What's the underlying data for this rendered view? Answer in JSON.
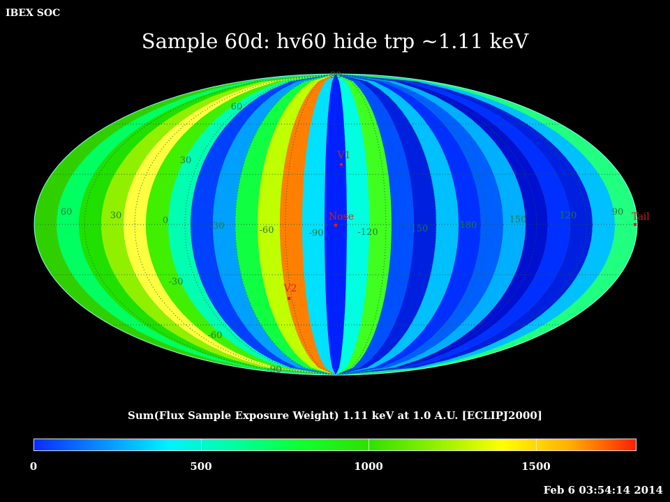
{
  "header": {
    "corner_label": "IBEX SOC",
    "title": "Sample 60d: hv60 hide trp ~1.11 keV"
  },
  "map": {
    "projection": "Mollweide",
    "frame": "ECLIPJ2000",
    "grid_lines": "dotted",
    "lon_labels": [
      "60",
      "30",
      "0",
      "-30",
      "-60",
      "-90",
      "-120",
      "150",
      "180",
      "150",
      "120",
      "90"
    ],
    "lat_labels": [
      "90",
      "60",
      "30",
      "-30",
      "-60",
      "-90"
    ],
    "markers": [
      {
        "label": "V1"
      },
      {
        "label": "Nose"
      },
      {
        "label": "V2"
      },
      {
        "label": "Tail"
      }
    ],
    "marker_color": "#d42020"
  },
  "colorbar": {
    "title": "Sum(Flux Sample Exposure Weight)  1.11 keV at 1.0 A.U. [ECLIPJ2000]",
    "tick_labels": [
      "0",
      "500",
      "1000",
      "1500"
    ],
    "range": [
      0,
      1800
    ],
    "colors": [
      "#0a2cff",
      "#0a8cff",
      "#00f0ff",
      "#00ffa0",
      "#10ff30",
      "#30e000",
      "#90f000",
      "#ffff00",
      "#ffb000",
      "#ff2000"
    ]
  },
  "footer": {
    "timestamp": "Feb  6 03:54:14 2014"
  }
}
